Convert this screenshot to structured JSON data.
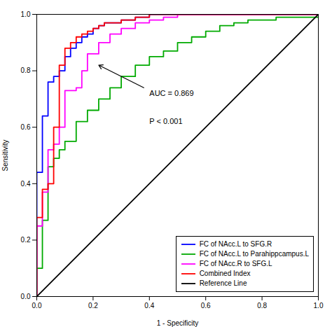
{
  "chart_data": {
    "type": "line",
    "xlabel": "1 - Specificity",
    "ylabel": "Sensitivity",
    "xlim": [
      0.0,
      1.0
    ],
    "ylim": [
      0.0,
      1.0
    ],
    "xticks": [
      {
        "value": 0.0,
        "label": "0.0"
      },
      0.2,
      0.4,
      0.6,
      0.8,
      {
        "value": 1.0,
        "label": "1.0"
      }
    ],
    "yticks": [
      {
        "value": 0.0,
        "label": "0.0"
      },
      0.2,
      0.4,
      0.6,
      0.8,
      {
        "value": 1.0,
        "label": "1.0"
      }
    ],
    "grid": false,
    "legend": "lower right",
    "series": [
      {
        "name": "FC of NAcc.L to SFG.R",
        "color": "#0000FF",
        "x": [
          0.0,
          0.0,
          0.02,
          0.02,
          0.04,
          0.04,
          0.06,
          0.06,
          0.08,
          0.08,
          0.1,
          0.1,
          0.12,
          0.12,
          0.14,
          0.14,
          0.16,
          0.16,
          0.18,
          0.18,
          0.2,
          0.2,
          0.22,
          0.22,
          0.24,
          0.24,
          0.3,
          0.3,
          0.35,
          0.35,
          0.4,
          0.4,
          0.45,
          0.45,
          0.5,
          0.5,
          0.55,
          0.55,
          0.6,
          0.6,
          1.0
        ],
        "values": [
          0.0,
          0.44,
          0.44,
          0.64,
          0.64,
          0.76,
          0.76,
          0.78,
          0.78,
          0.8,
          0.8,
          0.85,
          0.85,
          0.88,
          0.88,
          0.9,
          0.9,
          0.92,
          0.92,
          0.93,
          0.93,
          0.95,
          0.95,
          0.96,
          0.96,
          0.97,
          0.97,
          0.98,
          0.98,
          0.99,
          0.99,
          1.0,
          1.0,
          1.0,
          1.0,
          1.0,
          1.0,
          1.0,
          1.0,
          1.0,
          1.0
        ]
      },
      {
        "name": "FC of NAcc.L to Parahippcampus.L",
        "color": "#00AA00",
        "x": [
          0.0,
          0.0,
          0.02,
          0.02,
          0.04,
          0.04,
          0.06,
          0.06,
          0.08,
          0.08,
          0.1,
          0.1,
          0.14,
          0.14,
          0.18,
          0.18,
          0.22,
          0.22,
          0.26,
          0.26,
          0.3,
          0.3,
          0.35,
          0.35,
          0.4,
          0.4,
          0.45,
          0.45,
          0.5,
          0.5,
          0.55,
          0.55,
          0.6,
          0.6,
          0.65,
          0.65,
          0.7,
          0.7,
          0.75,
          0.75,
          0.85,
          0.85,
          1.0
        ],
        "values": [
          0.0,
          0.1,
          0.1,
          0.27,
          0.27,
          0.46,
          0.46,
          0.49,
          0.49,
          0.52,
          0.52,
          0.55,
          0.55,
          0.62,
          0.62,
          0.66,
          0.66,
          0.7,
          0.7,
          0.74,
          0.74,
          0.78,
          0.78,
          0.82,
          0.82,
          0.85,
          0.85,
          0.87,
          0.87,
          0.9,
          0.9,
          0.92,
          0.92,
          0.94,
          0.94,
          0.96,
          0.96,
          0.97,
          0.97,
          0.98,
          0.98,
          0.99,
          0.99
        ]
      },
      {
        "name": "FC of NAcc.R to SFG.L",
        "color": "#FF00FF",
        "x": [
          0.0,
          0.0,
          0.02,
          0.02,
          0.04,
          0.04,
          0.06,
          0.06,
          0.08,
          0.08,
          0.1,
          0.1,
          0.14,
          0.14,
          0.16,
          0.16,
          0.18,
          0.18,
          0.22,
          0.22,
          0.26,
          0.26,
          0.3,
          0.3,
          0.35,
          0.35,
          0.4,
          0.4,
          0.45,
          0.45,
          0.5,
          0.5,
          0.55,
          0.55,
          1.0
        ],
        "values": [
          0.0,
          0.25,
          0.25,
          0.37,
          0.37,
          0.52,
          0.52,
          0.54,
          0.54,
          0.6,
          0.6,
          0.73,
          0.73,
          0.74,
          0.74,
          0.8,
          0.8,
          0.86,
          0.86,
          0.9,
          0.9,
          0.93,
          0.93,
          0.95,
          0.95,
          0.97,
          0.97,
          0.98,
          0.98,
          0.99,
          0.99,
          1.0,
          1.0,
          1.0,
          1.0
        ]
      },
      {
        "name": "Combined Index",
        "color": "#FF0000",
        "x": [
          0.0,
          0.0,
          0.02,
          0.02,
          0.04,
          0.04,
          0.06,
          0.06,
          0.08,
          0.08,
          0.1,
          0.1,
          0.12,
          0.12,
          0.14,
          0.14,
          0.16,
          0.16,
          0.18,
          0.18,
          0.2,
          0.2,
          0.22,
          0.22,
          0.24,
          0.24,
          0.3,
          0.3,
          0.35,
          0.35,
          0.4,
          0.4,
          0.45,
          0.45,
          0.5,
          0.5,
          1.0
        ],
        "values": [
          0.0,
          0.28,
          0.28,
          0.38,
          0.38,
          0.4,
          0.4,
          0.6,
          0.6,
          0.82,
          0.82,
          0.88,
          0.88,
          0.9,
          0.9,
          0.92,
          0.92,
          0.93,
          0.93,
          0.94,
          0.94,
          0.95,
          0.95,
          0.96,
          0.96,
          0.97,
          0.97,
          0.98,
          0.98,
          0.99,
          0.99,
          1.0,
          1.0,
          1.0,
          1.0,
          1.0,
          1.0
        ]
      },
      {
        "name": "Reference Line",
        "color": "#000000",
        "x": [
          0,
          1
        ],
        "values": [
          0,
          1
        ]
      }
    ],
    "annotations": [
      {
        "text": "AUC = 0.869",
        "x": 0.4,
        "y": 0.73
      },
      {
        "text": "P < 0.001",
        "x": 0.4,
        "y": 0.63
      }
    ],
    "arrows": [
      {
        "x1": 0.38,
        "y1": 0.74,
        "x2": 0.22,
        "y2": 0.82
      }
    ]
  }
}
